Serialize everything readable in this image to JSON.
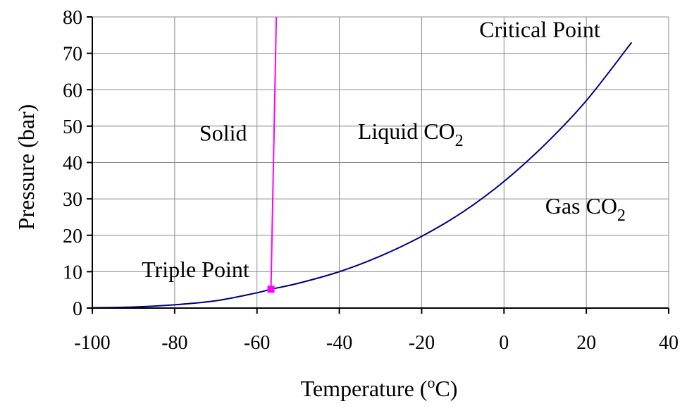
{
  "chart_data": {
    "type": "line",
    "title": "",
    "xlabel": "Temperature",
    "xlabel_unit": "C",
    "xlabel_unit_sup": "o",
    "ylabel": "Pressure (bar)",
    "xlim": [
      -100,
      40
    ],
    "ylim": [
      0,
      80
    ],
    "xticks": [
      -100,
      -80,
      -60,
      -40,
      -20,
      0,
      20,
      40
    ],
    "yticks": [
      0,
      10,
      20,
      30,
      40,
      50,
      60,
      70,
      80
    ],
    "grid": true,
    "colors": {
      "vapor_curve": "#000080",
      "melting_line": "#ff00ff",
      "grid": "#8c8c8c",
      "axis": "#000000"
    },
    "series": [
      {
        "key": "vapor",
        "x": [
          -100,
          -90,
          -80,
          -70,
          -60,
          -56.6,
          -50,
          -40,
          -30,
          -20,
          -10,
          0,
          10,
          20,
          31
        ],
        "y": [
          0.1,
          0.3,
          0.9,
          2.0,
          4.2,
          5.18,
          6.8,
          10.0,
          14.3,
          19.7,
          26.4,
          34.8,
          45.0,
          57.0,
          73.0
        ]
      },
      {
        "key": "melting",
        "x": [
          -56.6,
          -55.3
        ],
        "y": [
          5.18,
          80
        ]
      }
    ],
    "annotations": [
      {
        "key": "solid",
        "text": "Solid",
        "x": -74,
        "y": 46
      },
      {
        "key": "liquid",
        "text": "Liquid CO",
        "sub": "2",
        "x": -35.5,
        "y": 46.5
      },
      {
        "key": "gas",
        "text": "Gas CO",
        "sub": "2",
        "x": 10,
        "y": 26
      },
      {
        "key": "critical",
        "text": "Critical Point",
        "x": -6,
        "y": 74.5
      },
      {
        "key": "triple",
        "text": "Triple Point",
        "x": -88,
        "y": 8.5
      }
    ],
    "markers": [
      {
        "key": "triple-point",
        "x": -56.6,
        "y": 5.18
      }
    ]
  }
}
